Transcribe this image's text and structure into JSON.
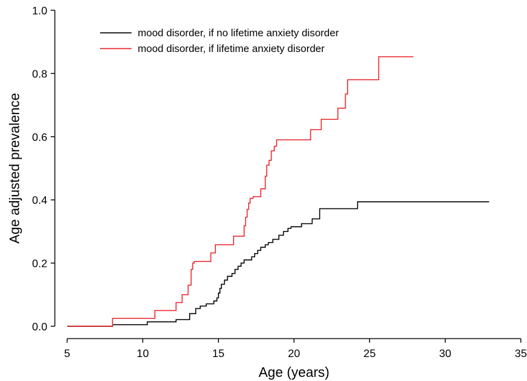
{
  "chart_data": {
    "type": "line",
    "title": "",
    "xlabel": "Age (years)",
    "ylabel": "Age adjusted prevalence",
    "xlim": [
      5,
      35
    ],
    "ylim": [
      0,
      1.0
    ],
    "xticks": [
      5,
      10,
      15,
      20,
      25,
      30,
      35
    ],
    "yticks": [
      0.0,
      0.2,
      0.4,
      0.6,
      0.8,
      1.0
    ],
    "xtick_labels": [
      "5",
      "10",
      "15",
      "20",
      "25",
      "30",
      "35"
    ],
    "ytick_labels": [
      "0.0",
      "0.2",
      "0.4",
      "0.6",
      "0.8",
      "1.0"
    ],
    "step": true,
    "grid": false,
    "legend_position": "top-left",
    "series": [
      {
        "name": "mood disorder, if no lifetime anxiety disorder",
        "color": "#000000",
        "x": [
          5,
          8.0,
          10.3,
          12.2,
          13.1,
          13.5,
          13.8,
          14.2,
          14.7,
          14.9,
          15.0,
          15.1,
          15.2,
          15.4,
          15.6,
          15.9,
          16.1,
          16.3,
          16.5,
          16.7,
          17.2,
          17.4,
          17.6,
          17.8,
          18.1,
          18.3,
          18.6,
          19.0,
          19.3,
          19.6,
          19.8,
          20.5,
          21.2,
          21.7,
          24.2,
          32.9
        ],
        "y": [
          0.0,
          0.005,
          0.014,
          0.021,
          0.04,
          0.056,
          0.064,
          0.071,
          0.08,
          0.09,
          0.105,
          0.12,
          0.133,
          0.146,
          0.158,
          0.167,
          0.18,
          0.19,
          0.2,
          0.21,
          0.22,
          0.23,
          0.24,
          0.25,
          0.258,
          0.265,
          0.275,
          0.288,
          0.3,
          0.31,
          0.315,
          0.325,
          0.34,
          0.372,
          0.394,
          0.394
        ]
      },
      {
        "name": "mood disorder, if lifetime anxiety disorder",
        "color": "#e8252b",
        "x": [
          5,
          8.0,
          10.8,
          12.2,
          12.6,
          13.0,
          13.2,
          13.3,
          13.4,
          14.5,
          14.8,
          16.0,
          16.7,
          16.8,
          16.9,
          17.0,
          17.1,
          17.3,
          17.8,
          18.1,
          18.2,
          18.35,
          18.5,
          18.7,
          18.85,
          21.1,
          21.8,
          22.9,
          23.4,
          23.55,
          25.6,
          27.9
        ],
        "y": [
          0.0,
          0.025,
          0.05,
          0.075,
          0.1,
          0.13,
          0.18,
          0.2,
          0.205,
          0.232,
          0.258,
          0.285,
          0.318,
          0.345,
          0.37,
          0.39,
          0.405,
          0.41,
          0.435,
          0.475,
          0.51,
          0.525,
          0.555,
          0.57,
          0.59,
          0.622,
          0.655,
          0.69,
          0.735,
          0.78,
          0.853,
          0.853
        ]
      }
    ]
  }
}
